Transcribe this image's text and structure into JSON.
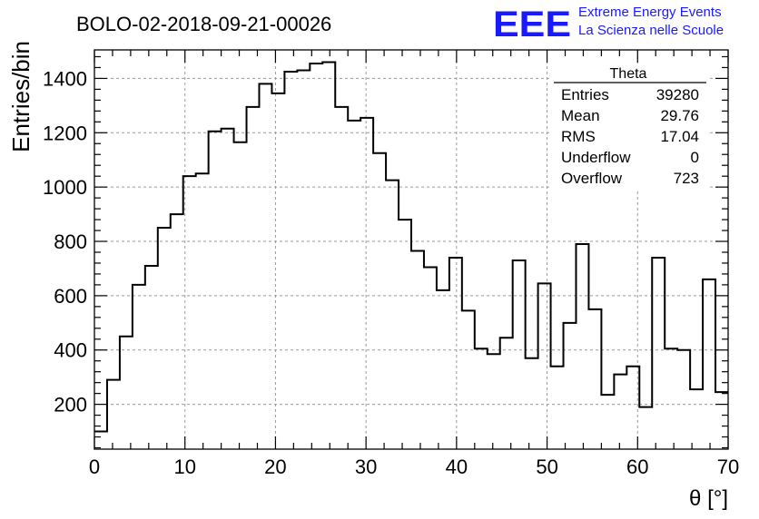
{
  "header": {
    "run_title": "BOLO-02-2018-09-21-00026",
    "logo_text": "EEE",
    "brand_line1": "Extreme Energy Events",
    "brand_line2": "La Scienza nelle Scuole",
    "brand_color": "#1a1aff"
  },
  "stats_box": {
    "title": "Theta",
    "rows": [
      {
        "label": "Entries",
        "value": "39280"
      },
      {
        "label": "Mean",
        "value": "29.76"
      },
      {
        "label": "RMS",
        "value": "17.04"
      },
      {
        "label": "Underflow",
        "value": "0"
      },
      {
        "label": "Overflow",
        "value": "723"
      }
    ]
  },
  "chart_data": {
    "type": "histogram",
    "title": "BOLO-02-2018-09-21-00026",
    "xlabel": "θ [°]",
    "ylabel": "Entries/bin",
    "xlim": [
      0,
      70
    ],
    "ylim": [
      35,
      1505
    ],
    "bin_width": 1.4,
    "grid": true,
    "x_ticks": [
      0,
      10,
      20,
      30,
      40,
      50,
      60,
      70
    ],
    "y_ticks": [
      200,
      400,
      600,
      800,
      1000,
      1200,
      1400
    ],
    "bins_start": 0,
    "values": [
      100,
      290,
      450,
      640,
      710,
      850,
      900,
      1040,
      1050,
      1205,
      1215,
      1165,
      1295,
      1380,
      1345,
      1425,
      1430,
      1455,
      1460,
      1295,
      1245,
      1255,
      1125,
      1025,
      880,
      765,
      705,
      620,
      740,
      545,
      405,
      385,
      445,
      730,
      370,
      645,
      340,
      500,
      790,
      550,
      235,
      310,
      340,
      190,
      740,
      405,
      400,
      255,
      660,
      245
    ]
  }
}
